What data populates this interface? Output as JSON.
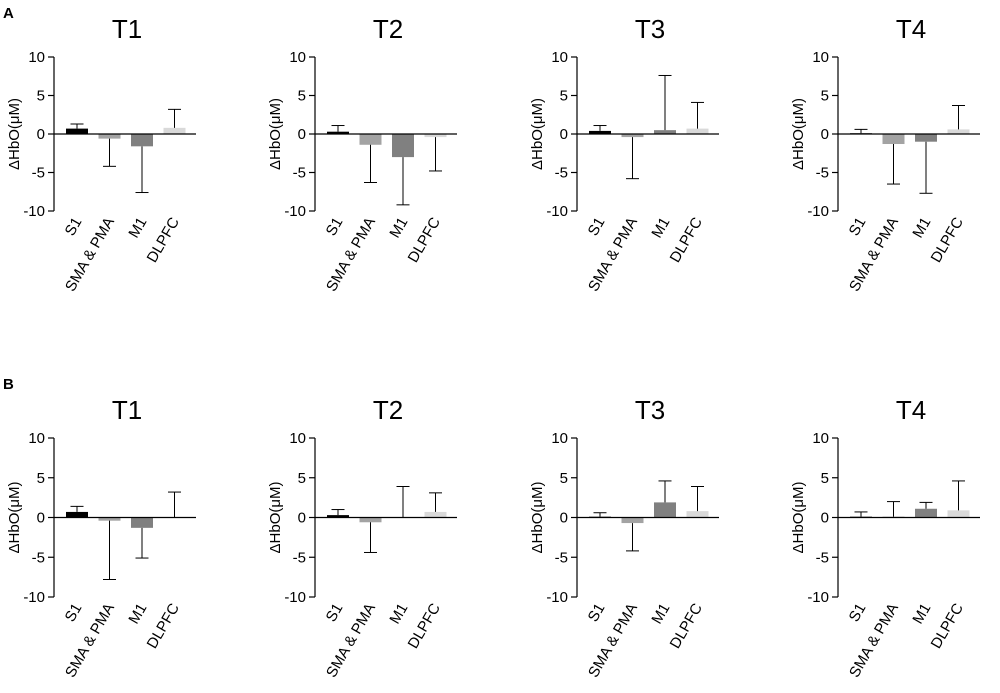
{
  "panels": [
    {
      "label": "A"
    },
    {
      "label": "B"
    }
  ],
  "colors": {
    "S1": "#000000",
    "SMA & PMA": "#a3a3a3",
    "M1": "#808080",
    "DLPFC": "#d9d9d9",
    "axis": "#000000",
    "error_bar": "#000000"
  },
  "chart_data": [
    {
      "panel": "A",
      "type": "bar",
      "title": "T1",
      "ylabel": "ΔHbO(μM)",
      "ylim": [
        -10,
        10
      ],
      "yticks": [
        -10,
        -5,
        0,
        5,
        10
      ],
      "categories": [
        "S1",
        "SMA & PMA",
        "M1",
        "DLPFC"
      ],
      "values": [
        0.7,
        -0.6,
        -1.6,
        0.8
      ],
      "error_ends": [
        1.3,
        -4.2,
        -7.6,
        3.2
      ]
    },
    {
      "panel": "A",
      "type": "bar",
      "title": "T2",
      "ylabel": "ΔHbO(μM)",
      "ylim": [
        -10,
        10
      ],
      "yticks": [
        -10,
        -5,
        0,
        5,
        10
      ],
      "categories": [
        "S1",
        "SMA & PMA",
        "M1",
        "DLPFC"
      ],
      "values": [
        0.3,
        -1.4,
        -3.0,
        -0.4
      ],
      "error_ends": [
        1.1,
        -6.3,
        -9.2,
        -4.8
      ]
    },
    {
      "panel": "A",
      "type": "bar",
      "title": "T3",
      "ylabel": "ΔHbO(μM)",
      "ylim": [
        -10,
        10
      ],
      "yticks": [
        -10,
        -5,
        0,
        5,
        10
      ],
      "categories": [
        "S1",
        "SMA & PMA",
        "M1",
        "DLPFC"
      ],
      "values": [
        0.4,
        -0.4,
        0.5,
        0.7
      ],
      "error_ends": [
        1.1,
        -5.8,
        7.6,
        4.1
      ]
    },
    {
      "panel": "A",
      "type": "bar",
      "title": "T4",
      "ylabel": "ΔHbO(μM)",
      "ylim": [
        -10,
        10
      ],
      "yticks": [
        -10,
        -5,
        0,
        5,
        10
      ],
      "categories": [
        "S1",
        "SMA & PMA",
        "M1",
        "DLPFC"
      ],
      "values": [
        0.1,
        -1.3,
        -1.0,
        0.6
      ],
      "error_ends": [
        0.6,
        -6.5,
        -7.7,
        3.7
      ]
    },
    {
      "panel": "B",
      "type": "bar",
      "title": "T1",
      "ylabel": "ΔHbO(μM)",
      "ylim": [
        -10,
        10
      ],
      "yticks": [
        -10,
        -5,
        0,
        5,
        10
      ],
      "categories": [
        "S1",
        "SMA & PMA",
        "M1",
        "DLPFC"
      ],
      "values": [
        0.7,
        -0.4,
        -1.3,
        0.0
      ],
      "error_ends": [
        1.4,
        -7.8,
        -5.1,
        3.2
      ]
    },
    {
      "panel": "B",
      "type": "bar",
      "title": "T2",
      "ylabel": "ΔHbO(μM)",
      "ylim": [
        -10,
        10
      ],
      "yticks": [
        -10,
        -5,
        0,
        5,
        10
      ],
      "categories": [
        "S1",
        "SMA & PMA",
        "M1",
        "DLPFC"
      ],
      "values": [
        0.3,
        -0.6,
        0.0,
        0.7
      ],
      "error_ends": [
        1.0,
        -4.4,
        3.9,
        3.1
      ]
    },
    {
      "panel": "B",
      "type": "bar",
      "title": "T3",
      "ylabel": "ΔHbO(μM)",
      "ylim": [
        -10,
        10
      ],
      "yticks": [
        -10,
        -5,
        0,
        5,
        10
      ],
      "categories": [
        "S1",
        "SMA & PMA",
        "M1",
        "DLPFC"
      ],
      "values": [
        0.1,
        -0.7,
        1.9,
        0.8
      ],
      "error_ends": [
        0.6,
        -4.2,
        4.6,
        3.9
      ]
    },
    {
      "panel": "B",
      "type": "bar",
      "title": "T4",
      "ylabel": "ΔHbO(μM)",
      "ylim": [
        -10,
        10
      ],
      "yticks": [
        -10,
        -5,
        0,
        5,
        10
      ],
      "categories": [
        "S1",
        "SMA & PMA",
        "M1",
        "DLPFC"
      ],
      "values": [
        0.1,
        0.1,
        1.1,
        0.9
      ],
      "error_ends": [
        0.7,
        2.0,
        1.9,
        4.6
      ]
    }
  ]
}
